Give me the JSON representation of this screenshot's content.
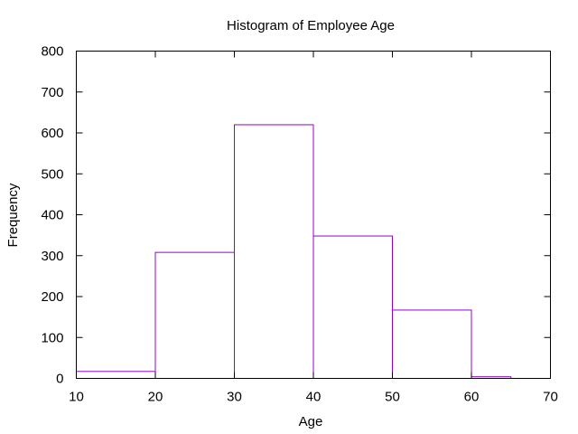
{
  "chart_data": {
    "type": "bar",
    "title": "Histogram of Employee Age",
    "xlabel": "Age",
    "ylabel": "Frequency",
    "xlim": [
      10,
      70
    ],
    "ylim": [
      0,
      800
    ],
    "xticks": [
      10,
      20,
      30,
      40,
      50,
      60,
      70
    ],
    "yticks": [
      0,
      100,
      200,
      300,
      400,
      500,
      600,
      700,
      800
    ],
    "grid": false,
    "legend": "none",
    "bar_color": "#9400d3",
    "bins": [
      {
        "x0": 10,
        "x1": 20,
        "value": 17
      },
      {
        "x0": 20,
        "x1": 30,
        "value": 308
      },
      {
        "x0": 30,
        "x1": 40,
        "value": 620
      },
      {
        "x0": 40,
        "x1": 50,
        "value": 348
      },
      {
        "x0": 50,
        "x1": 60,
        "value": 167
      },
      {
        "x0": 60,
        "x1": 65,
        "value": 4
      }
    ]
  }
}
